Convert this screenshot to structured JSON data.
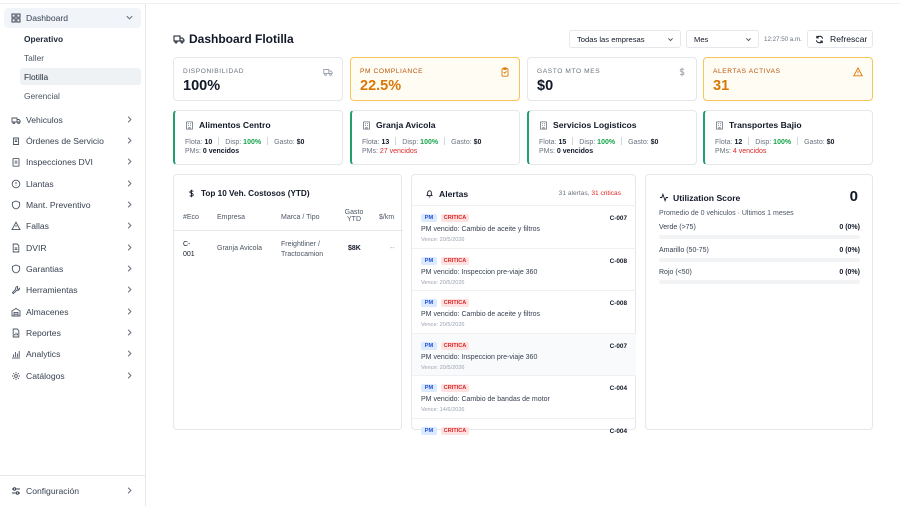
{
  "sidebar": {
    "dashboard": "Dashboard",
    "sub": [
      "Operativo",
      "Taller",
      "Flotilla",
      "Gerencial"
    ],
    "items": [
      {
        "label": "Vehiculos",
        "icon": "truck-icon"
      },
      {
        "label": "Órdenes de Servicio",
        "icon": "wrench-icon"
      },
      {
        "label": "Inspecciones DVI",
        "icon": "clipboard-icon"
      },
      {
        "label": "Llantas",
        "icon": "circle-icon"
      },
      {
        "label": "Mant. Preventivo",
        "icon": "shield-icon"
      },
      {
        "label": "Fallas",
        "icon": "triangle-alert-icon"
      },
      {
        "label": "DVIR",
        "icon": "file-icon"
      },
      {
        "label": "Garantias",
        "icon": "shield-check-icon"
      },
      {
        "label": "Herramientas",
        "icon": "tool-icon"
      },
      {
        "label": "Almacenes",
        "icon": "warehouse-icon"
      },
      {
        "label": "Reportes",
        "icon": "report-icon"
      },
      {
        "label": "Analytics",
        "icon": "chart-icon"
      },
      {
        "label": "Catálogos",
        "icon": "gear-icon"
      }
    ],
    "config": "Configuración"
  },
  "header": {
    "title": "Dashboard Flotilla",
    "company_select": "Todas las empresas",
    "period_select": "Mes",
    "time": "12:27:50 a.m.",
    "refresh": "Refrescar"
  },
  "kpis": [
    {
      "label": "DISPONIBILIDAD",
      "value": "100%",
      "icon": "truck-icon"
    },
    {
      "label": "PM COMPLIANCE",
      "value": "22.5%",
      "icon": "clipboard-icon"
    },
    {
      "label": "GASTO MTO MES",
      "value": "$0",
      "icon": "dollar-icon"
    },
    {
      "label": "ALERTAS ACTIVAS",
      "value": "31",
      "icon": "warning-icon"
    }
  ],
  "companies": [
    {
      "name": "Alimentos Centro",
      "flota": "10",
      "disp": "100%",
      "gasto": "$0",
      "pms": "0 vencidos",
      "pms_alert": false
    },
    {
      "name": "Granja Avicola",
      "flota": "13",
      "disp": "100%",
      "gasto": "$0",
      "pms": "27 vencidos",
      "pms_alert": true
    },
    {
      "name": "Servicios Logisticos",
      "flota": "15",
      "disp": "100%",
      "gasto": "$0",
      "pms": "0 vencidos",
      "pms_alert": false
    },
    {
      "name": "Transportes Bajio",
      "flota": "12",
      "disp": "100%",
      "gasto": "$0",
      "pms": "4 vencidos",
      "pms_alert": true
    }
  ],
  "labels": {
    "flota": "Flota:",
    "disp": "Disp:",
    "gasto": "Gasto:",
    "pms": "PMs:"
  },
  "top10": {
    "title": "Top 10 Veh. Costosos (YTD)",
    "cols": [
      "#Eco",
      "Empresa",
      "Marca / Tipo",
      "Gasto YTD",
      "$/km"
    ],
    "rows": [
      {
        "eco": "C-001",
        "empresa": "Granja Avicola",
        "marca": "Freightliner / Tractocamion",
        "gasto": "$8K",
        "km": "--"
      }
    ]
  },
  "alerts": {
    "title": "Alertas",
    "summary": "31 alertas,",
    "critical": "31 criticas",
    "pm_tag": "PM",
    "crit_tag": "CRITICA",
    "items": [
      {
        "vehicle": "C-007",
        "msg": "PM vencido: Cambio de aceite y filtros",
        "due": "Vence: 20/5/2026"
      },
      {
        "vehicle": "C-008",
        "msg": "PM vencido: Inspeccion pre-viaje 360",
        "due": "Vence: 20/5/2026"
      },
      {
        "vehicle": "C-008",
        "msg": "PM vencido: Cambio de aceite y filtros",
        "due": "Vence: 20/5/2026"
      },
      {
        "vehicle": "C-007",
        "msg": "PM vencido: Inspeccion pre-viaje 360",
        "due": "Vence: 20/5/2026"
      },
      {
        "vehicle": "C-004",
        "msg": "PM vencido: Cambio de bandas de motor",
        "due": "Vence: 14/6/2026"
      },
      {
        "vehicle": "C-004",
        "msg": "",
        "due": ""
      }
    ]
  },
  "utilization": {
    "title": "Utilization Score",
    "score": "0",
    "subtitle": "Promedio de 0 vehiculos · Ultimos 1 meses",
    "rows": [
      {
        "label": "Verde (>75)",
        "value": "0 (0%)",
        "fraction": 0,
        "color": "#16a34a"
      },
      {
        "label": "Amarillo (50-75)",
        "value": "0 (0%)",
        "fraction": 0,
        "color": "#eab308"
      },
      {
        "label": "Rojo (<50)",
        "value": "0 (0%)",
        "fraction": 0,
        "color": "#dc2626"
      }
    ]
  }
}
